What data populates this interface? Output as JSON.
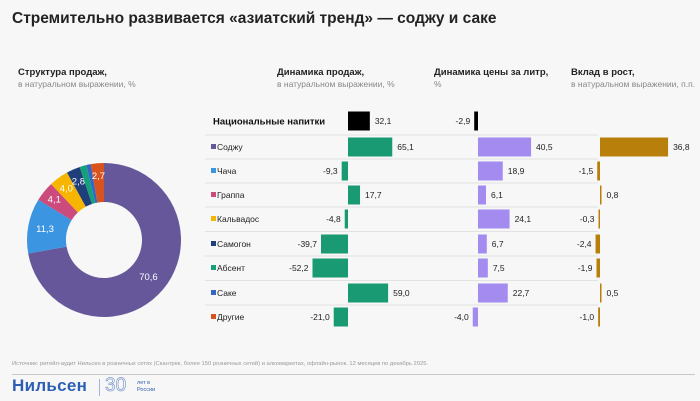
{
  "title": "Стремительно развивается «азиатский тренд» — соджу и саке",
  "columns": {
    "structure": {
      "title": "Структура продаж,",
      "subtitle": "в натуральном выражении, %"
    },
    "sales": {
      "title": "Динамика продаж,",
      "subtitle": "в натуральном выражении, %"
    },
    "price": {
      "title": "Динамика цены за литр,",
      "subtitle": "%"
    },
    "contribution": {
      "title": "Вклад в рост,",
      "subtitle": "в натуральном выражении, п.п."
    }
  },
  "colors": {
    "sales": "#1a9a72",
    "price": "#a48bf0",
    "contribution": "#b8800a",
    "total": "#000000"
  },
  "chart_data": [
    {
      "type": "pie",
      "variant": "donut",
      "title": "Структура продаж,",
      "subtitle": "в натуральном выражении, %",
      "slices": [
        {
          "name": "Соджу",
          "value": 70.6,
          "label": "70,6",
          "color": "#65579a"
        },
        {
          "name": "Чача",
          "value": 11.3,
          "label": "11,3",
          "color": "#3b95e0"
        },
        {
          "name": "Граппа",
          "value": 4.1,
          "label": "4,1",
          "color": "#cc4a7c"
        },
        {
          "name": "Кальвадос",
          "value": 4.0,
          "label": "4,0",
          "color": "#f7b500"
        },
        {
          "name": "Самогон",
          "value": 2.8,
          "label": "2,8",
          "color": "#1f3f7a"
        },
        {
          "name": "Абсент",
          "value": 1.4,
          "label": "",
          "color": "#13a07a"
        },
        {
          "name": "Саке",
          "value": 0.9,
          "label": "",
          "color": "#3466c8"
        },
        {
          "name": "Другие",
          "value": 2.7,
          "label": "2,7",
          "color": "#d9531e"
        }
      ]
    },
    {
      "type": "bar",
      "orientation": "horizontal",
      "categories": [
        "Национальные напитки",
        "Соджу",
        "Чача",
        "Граппа",
        "Кальвадос",
        "Самогон",
        "Абсент",
        "Саке",
        "Другие"
      ],
      "category_colors": [
        "#000000",
        "#65579a",
        "#3b95e0",
        "#cc4a7c",
        "#f7b500",
        "#1f3f7a",
        "#13a07a",
        "#3466c8",
        "#d9531e"
      ],
      "series": [
        {
          "name": "Динамика продаж,",
          "values": [
            32.1,
            65.1,
            -9.3,
            17.7,
            -4.8,
            -39.7,
            -52.2,
            59.0,
            -21.0
          ],
          "labels": [
            "32,1",
            "65,1",
            "-9,3",
            "17,7",
            "-4,8",
            "-39,7",
            "-52,2",
            "59,0",
            "-21,0"
          ]
        },
        {
          "name": "Динамика цены за литр,",
          "values": [
            -2.9,
            40.5,
            18.9,
            6.1,
            24.1,
            6.7,
            7.5,
            22.7,
            -4.0
          ],
          "labels": [
            "-2,9",
            "40,5",
            "18,9",
            "6,1",
            "24,1",
            "6,7",
            "7,5",
            "22,7",
            "-4,0"
          ]
        },
        {
          "name": "Вклад в рост,",
          "values": [
            null,
            36.8,
            -1.5,
            0.8,
            -0.3,
            -2.4,
            -1.9,
            0.5,
            -1.0
          ],
          "labels": [
            "",
            "36,8",
            "-1,5",
            "0,8",
            "-0,3",
            "-2,4",
            "-1,9",
            "0,5",
            "-1,0"
          ]
        }
      ]
    }
  ],
  "footer": {
    "source": "Источник: ритейл-аудит Нильсен в розничных сетях (Скантрек, более 150 розничных сетей) и алкомаркетах, офлайн-рынок. 12 месяцев по декабрь 2025.",
    "logo": "Нильсен",
    "logo_years": "30",
    "logo_years_caption": "лет в России"
  }
}
